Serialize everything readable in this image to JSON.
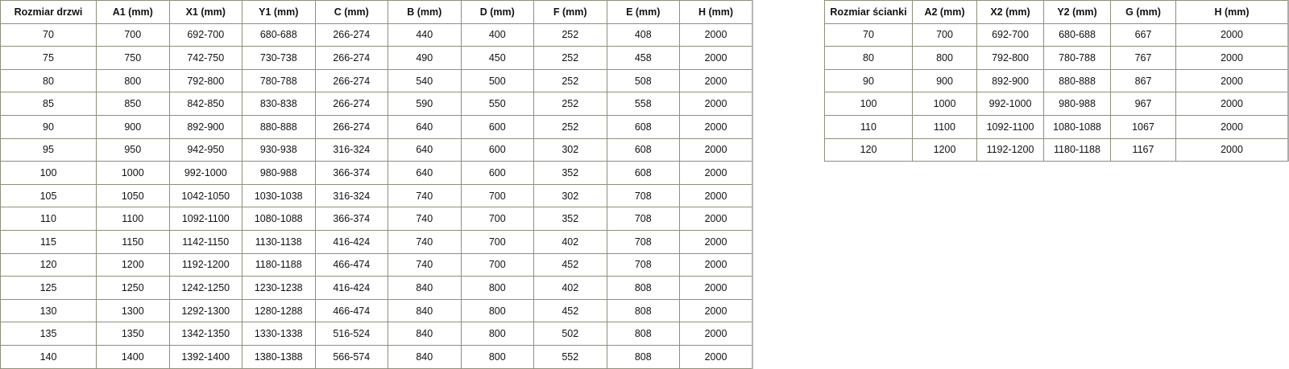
{
  "door_table": {
    "headers": [
      "Rozmiar drzwi",
      "A1 (mm)",
      "X1 (mm)",
      "Y1 (mm)",
      "C (mm)",
      "B (mm)",
      "D (mm)",
      "F (mm)",
      "E (mm)",
      "H (mm)"
    ],
    "rows": [
      [
        "70",
        "700",
        "692-700",
        "680-688",
        "266-274",
        "440",
        "400",
        "252",
        "408",
        "2000"
      ],
      [
        "75",
        "750",
        "742-750",
        "730-738",
        "266-274",
        "490",
        "450",
        "252",
        "458",
        "2000"
      ],
      [
        "80",
        "800",
        "792-800",
        "780-788",
        "266-274",
        "540",
        "500",
        "252",
        "508",
        "2000"
      ],
      [
        "85",
        "850",
        "842-850",
        "830-838",
        "266-274",
        "590",
        "550",
        "252",
        "558",
        "2000"
      ],
      [
        "90",
        "900",
        "892-900",
        "880-888",
        "266-274",
        "640",
        "600",
        "252",
        "608",
        "2000"
      ],
      [
        "95",
        "950",
        "942-950",
        "930-938",
        "316-324",
        "640",
        "600",
        "302",
        "608",
        "2000"
      ],
      [
        "100",
        "1000",
        "992-1000",
        "980-988",
        "366-374",
        "640",
        "600",
        "352",
        "608",
        "2000"
      ],
      [
        "105",
        "1050",
        "1042-1050",
        "1030-1038",
        "316-324",
        "740",
        "700",
        "302",
        "708",
        "2000"
      ],
      [
        "110",
        "1100",
        "1092-1100",
        "1080-1088",
        "366-374",
        "740",
        "700",
        "352",
        "708",
        "2000"
      ],
      [
        "115",
        "1150",
        "1142-1150",
        "1130-1138",
        "416-424",
        "740",
        "700",
        "402",
        "708",
        "2000"
      ],
      [
        "120",
        "1200",
        "1192-1200",
        "1180-1188",
        "466-474",
        "740",
        "700",
        "452",
        "708",
        "2000"
      ],
      [
        "125",
        "1250",
        "1242-1250",
        "1230-1238",
        "416-424",
        "840",
        "800",
        "402",
        "808",
        "2000"
      ],
      [
        "130",
        "1300",
        "1292-1300",
        "1280-1288",
        "466-474",
        "840",
        "800",
        "452",
        "808",
        "2000"
      ],
      [
        "135",
        "1350",
        "1342-1350",
        "1330-1338",
        "516-524",
        "840",
        "800",
        "502",
        "808",
        "2000"
      ],
      [
        "140",
        "1400",
        "1392-1400",
        "1380-1388",
        "566-574",
        "840",
        "800",
        "552",
        "808",
        "2000"
      ]
    ]
  },
  "wall_table": {
    "headers": [
      "Rozmiar ścianki",
      "A2 (mm)",
      "X2 (mm)",
      "Y2 (mm)",
      "G (mm)",
      "H (mm)"
    ],
    "rows": [
      [
        "70",
        "700",
        "692-700",
        "680-688",
        "667",
        "2000"
      ],
      [
        "80",
        "800",
        "792-800",
        "780-788",
        "767",
        "2000"
      ],
      [
        "90",
        "900",
        "892-900",
        "880-888",
        "867",
        "2000"
      ],
      [
        "100",
        "1000",
        "992-1000",
        "980-988",
        "967",
        "2000"
      ],
      [
        "110",
        "1100",
        "1092-1100",
        "1080-1088",
        "1067",
        "2000"
      ],
      [
        "120",
        "1200",
        "1192-1200",
        "1180-1188",
        "1167",
        "2000"
      ]
    ]
  }
}
